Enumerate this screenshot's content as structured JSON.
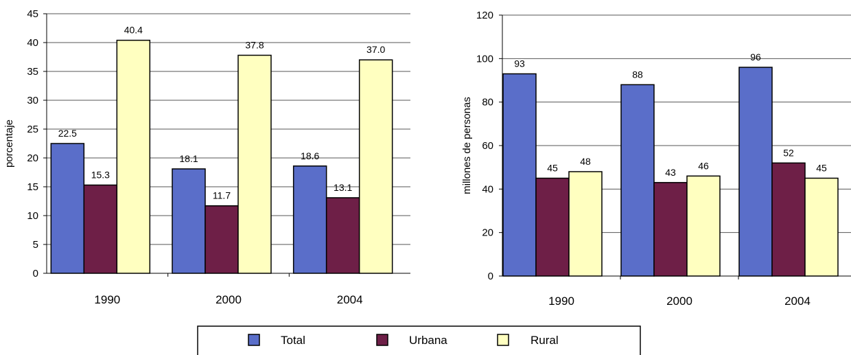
{
  "colors": {
    "Total": "#5a6ec9",
    "Urbana": "#6e1f47",
    "Rural": "#ffffc0"
  },
  "legend": {
    "items": [
      "Total",
      "Urbana",
      "Rural"
    ]
  },
  "chart_data": [
    {
      "type": "bar",
      "categories": [
        "1990",
        "2000",
        "2004"
      ],
      "series": [
        {
          "name": "Total",
          "values": [
            22.5,
            18.1,
            18.6
          ],
          "labels": [
            "22.5",
            "18.1",
            "18.6"
          ]
        },
        {
          "name": "Urbana",
          "values": [
            15.3,
            11.7,
            13.1
          ],
          "labels": [
            "15.3",
            "11.7",
            "13.1"
          ]
        },
        {
          "name": "Rural",
          "values": [
            40.4,
            37.8,
            37.0
          ],
          "labels": [
            "40.4",
            "37.8",
            "37.0"
          ]
        }
      ],
      "ylabel": "porcentaje",
      "ylim": [
        0,
        45
      ],
      "yticks": [
        0,
        5,
        10,
        15,
        20,
        25,
        30,
        35,
        40,
        45
      ],
      "grid": true
    },
    {
      "type": "bar",
      "categories": [
        "1990",
        "2000",
        "2004"
      ],
      "series": [
        {
          "name": "Total",
          "values": [
            93,
            88,
            96
          ],
          "labels": [
            "93",
            "88",
            "96"
          ]
        },
        {
          "name": "Urbana",
          "values": [
            45,
            43,
            52
          ],
          "labels": [
            "45",
            "43",
            "52"
          ]
        },
        {
          "name": "Rural",
          "values": [
            48,
            46,
            45
          ],
          "labels": [
            "48",
            "46",
            "45"
          ]
        }
      ],
      "ylabel": "millones de personas",
      "ylim": [
        0,
        120
      ],
      "yticks": [
        0,
        20,
        40,
        60,
        80,
        100,
        120
      ],
      "grid": true
    }
  ]
}
